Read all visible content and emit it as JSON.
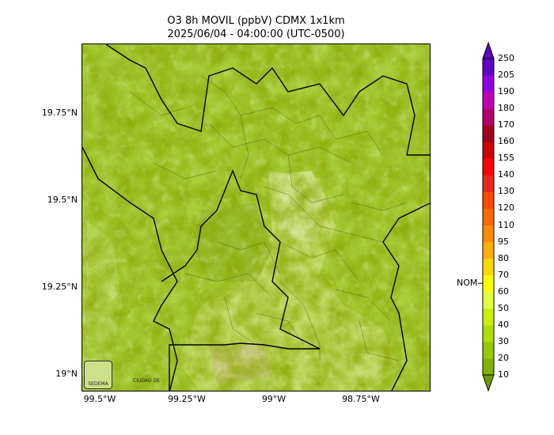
{
  "title": "O3 8h MOVIL (ppbV) CDMX 1x1km",
  "subtitle": "2025/06/04 - 04:00:00 (UTC-0500)",
  "map": {
    "lat_labels": [
      "19.75°N",
      "19.5°N",
      "19.25°N",
      "19°N"
    ],
    "lon_labels": [
      "99.5°W",
      "99.25°W",
      "99°W",
      "98.75°W"
    ],
    "base_color": "#a8cc3a",
    "logos": [
      "SEDEMA",
      "CIUDAD DE MÉXICO"
    ]
  },
  "colorbar": {
    "levels": [
      "10",
      "20",
      "30",
      "40",
      "50",
      "60",
      "70",
      "80",
      "95",
      "110",
      "120",
      "130",
      "140",
      "155",
      "160",
      "170",
      "180",
      "190",
      "205",
      "250"
    ],
    "colors": [
      "#6f9a00",
      "#84b200",
      "#98c800",
      "#aedf00",
      "#c8f000",
      "#e2ff40",
      "#fbff00",
      "#ffd800",
      "#ffb000",
      "#ff8c00",
      "#ff6a00",
      "#ff4a00",
      "#e82a1a",
      "#ff0000",
      "#d00000",
      "#a00020",
      "#b0006a",
      "#c000b0",
      "#9000e0",
      "#6000c0"
    ],
    "nom_label": "NOM",
    "nom_level": 70
  }
}
